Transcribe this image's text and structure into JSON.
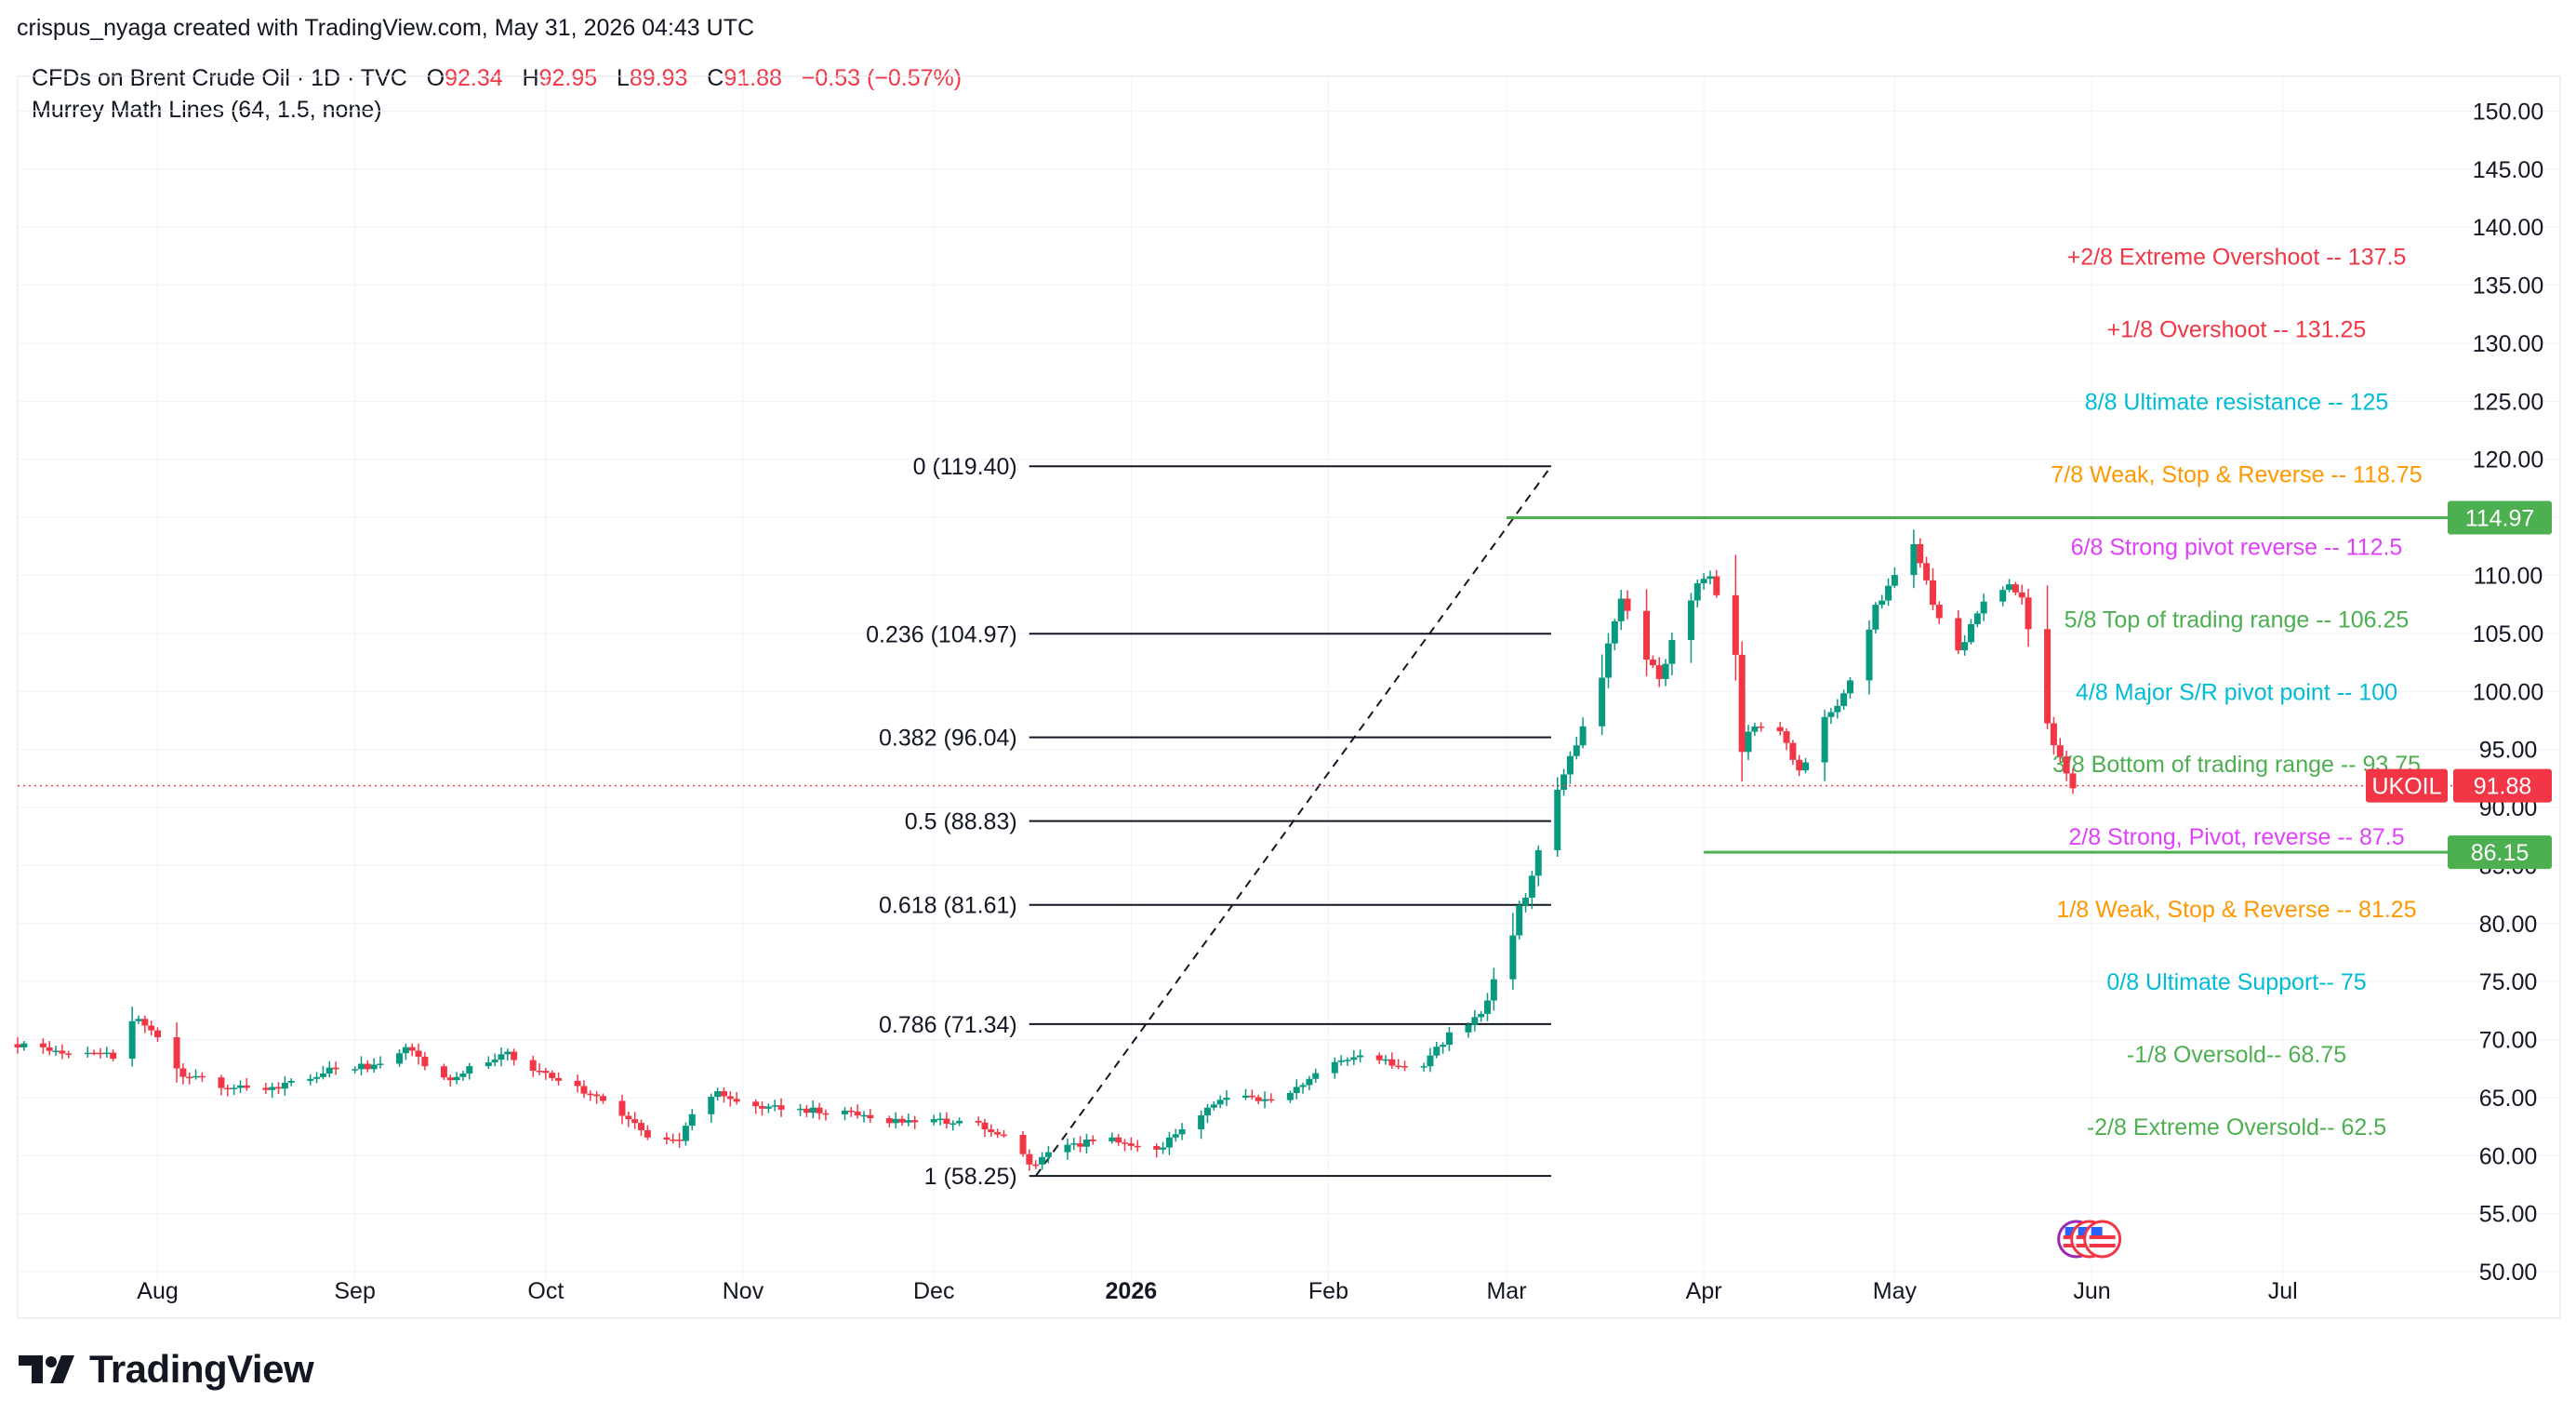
{
  "credit": "crispus_nyaga created with TradingView.com, May 31, 2026 04:43 UTC",
  "header": {
    "symbol": "CFDs on Brent Crude Oil · 1D · TVC",
    "o_label": "O",
    "o": "92.34",
    "h_label": "H",
    "h": "92.95",
    "l_label": "L",
    "l": "89.93",
    "c_label": "C",
    "c": "91.88",
    "change": "−0.53 (−0.57%)",
    "indicator": "Murrey Math Lines (64, 1.5, none)"
  },
  "logo": {
    "text": "TradingView",
    "icon": "tradingview-logo-icon"
  },
  "colors": {
    "up": "#089981",
    "down": "#f23645",
    "grid": "#f0f3fa",
    "fib": "#131722",
    "support": "#4caf50"
  },
  "chart_data": {
    "type": "candlestick",
    "symbol_label": "UKOIL",
    "last_price": 91.88,
    "last_price_label": "91.88",
    "x_range": [
      "2025-07-10",
      "2026-07-31"
    ],
    "ylim": [
      46,
      153
    ],
    "y_ticks": [
      "150.00",
      "145.00",
      "140.00",
      "135.00",
      "130.00",
      "125.00",
      "120.00",
      "115.00",
      "110.00",
      "105.00",
      "100.00",
      "95.00",
      "90.00",
      "85.00",
      "80.00",
      "75.00",
      "70.00",
      "65.00",
      "60.00",
      "55.00",
      "50.00"
    ],
    "x_ticks": [
      {
        "label": "Aug",
        "date": "2025-08-01"
      },
      {
        "label": "Sep",
        "date": "2025-09-01"
      },
      {
        "label": "Oct",
        "date": "2025-10-01"
      },
      {
        "label": "Nov",
        "date": "2025-11-01"
      },
      {
        "label": "Dec",
        "date": "2025-12-01"
      },
      {
        "label": "2026",
        "date": "2026-01-01",
        "bold": true
      },
      {
        "label": "Feb",
        "date": "2026-02-01"
      },
      {
        "label": "Mar",
        "date": "2026-03-01"
      },
      {
        "label": "Apr",
        "date": "2026-04-01"
      },
      {
        "label": "May",
        "date": "2026-05-01"
      },
      {
        "label": "Jun",
        "date": "2026-06-01"
      },
      {
        "label": "Jul",
        "date": "2026-07-01"
      }
    ],
    "path_start": "2025-07-10",
    "path_points": [
      [
        "2025-07-10",
        69.6
      ],
      [
        "2025-07-20",
        68.8
      ],
      [
        "2025-07-26",
        68.6
      ],
      [
        "2025-07-29",
        72.5
      ],
      [
        "2025-08-02",
        70.5
      ],
      [
        "2025-08-06",
        67.0
      ],
      [
        "2025-08-12",
        66.0
      ],
      [
        "2025-08-20",
        65.8
      ],
      [
        "2025-08-30",
        67.5
      ],
      [
        "2025-09-06",
        67.8
      ],
      [
        "2025-09-10",
        69.2
      ],
      [
        "2025-09-16",
        66.5
      ],
      [
        "2025-09-26",
        68.8
      ],
      [
        "2025-09-30",
        67.5
      ],
      [
        "2025-10-08",
        65.5
      ],
      [
        "2025-10-14",
        63.5
      ],
      [
        "2025-10-20",
        61.0
      ],
      [
        "2025-10-23",
        61.5
      ],
      [
        "2025-10-27",
        65.8
      ],
      [
        "2025-11-01",
        64.5
      ],
      [
        "2025-11-10",
        64.0
      ],
      [
        "2025-11-15",
        63.8
      ],
      [
        "2025-11-20",
        63.5
      ],
      [
        "2025-11-26",
        63.0
      ],
      [
        "2025-12-06",
        63.0
      ],
      [
        "2025-12-10",
        62.5
      ],
      [
        "2025-12-14",
        61.2
      ],
      [
        "2025-12-17",
        59.2
      ],
      [
        "2025-12-22",
        60.8
      ],
      [
        "2025-12-30",
        61.5
      ],
      [
        "2026-01-06",
        60.5
      ],
      [
        "2026-01-12",
        63.5
      ],
      [
        "2026-01-18",
        65.5
      ],
      [
        "2026-01-25",
        64.5
      ],
      [
        "2026-02-01",
        67.5
      ],
      [
        "2026-02-06",
        68.5
      ],
      [
        "2026-02-12",
        68.0
      ],
      [
        "2026-02-17",
        67.8
      ],
      [
        "2026-02-21",
        70.5
      ],
      [
        "2026-02-26",
        72.0
      ],
      [
        "2026-03-02",
        78.0
      ],
      [
        "2026-03-06",
        84.0
      ],
      [
        "2026-03-10",
        91.5
      ],
      [
        "2026-03-14",
        97.0
      ],
      [
        "2026-03-18",
        103.5
      ],
      [
        "2026-03-20",
        108.0
      ],
      [
        "2026-03-23",
        104.0
      ],
      [
        "2026-03-26",
        101.0
      ],
      [
        "2026-03-30",
        108.0
      ],
      [
        "2026-04-03",
        110.0
      ],
      [
        "2026-04-06",
        106.0
      ],
      [
        "2026-04-08",
        96.0
      ],
      [
        "2026-04-13",
        98.0
      ],
      [
        "2026-04-17",
        93.0
      ],
      [
        "2026-04-20",
        96.0
      ],
      [
        "2026-04-25",
        101.0
      ],
      [
        "2026-04-28",
        106.0
      ],
      [
        "2026-05-02",
        110.0
      ],
      [
        "2026-05-05",
        112.5
      ],
      [
        "2026-05-09",
        106.0
      ],
      [
        "2026-05-12",
        103.5
      ],
      [
        "2026-05-16",
        107.5
      ],
      [
        "2026-05-20",
        109.0
      ],
      [
        "2026-05-22",
        108.0
      ],
      [
        "2026-05-25",
        99.5
      ],
      [
        "2026-05-27",
        95.5
      ],
      [
        "2026-05-30",
        91.88
      ]
    ],
    "fib_start": {
      "date": "2025-12-17",
      "price": 58.25
    },
    "fib_end": {
      "date": "2026-03-08",
      "price": 119.4
    },
    "fib_levels": [
      {
        "label": "0 (119.40)",
        "price": 119.4
      },
      {
        "label": "0.236 (104.97)",
        "price": 104.97
      },
      {
        "label": "0.382 (96.04)",
        "price": 96.04
      },
      {
        "label": "0.5 (88.83)",
        "price": 88.83
      },
      {
        "label": "0.618 (81.61)",
        "price": 81.61
      },
      {
        "label": "0.786 (71.34)",
        "price": 71.34
      },
      {
        "label": "1 (58.25)",
        "price": 58.25
      }
    ],
    "horizontal_lines": [
      {
        "price": 114.97,
        "label": "114.97",
        "start": "2026-03-01"
      },
      {
        "price": 86.15,
        "label": "86.15",
        "start": "2026-04-01"
      }
    ],
    "murrey_lines": [
      {
        "label": "+2/8 Extreme Overshoot --  137.5",
        "price": 137.5,
        "color": "#f23645"
      },
      {
        "label": "+1/8 Overshoot --  131.25",
        "price": 131.25,
        "color": "#f23645"
      },
      {
        "label": "8/8 Ultimate resistance --  125",
        "price": 125,
        "color": "#00bcd4"
      },
      {
        "label": "7/8 Weak, Stop & Reverse --  118.75",
        "price": 118.75,
        "color": "#ff9800"
      },
      {
        "label": "6/8 Strong pivot reverse --  112.5",
        "price": 112.5,
        "color": "#e040fb"
      },
      {
        "label": "5/8 Top of trading range --  106.25",
        "price": 106.25,
        "color": "#4caf50"
      },
      {
        "label": "4/8 Major S/R pivot point --  100",
        "price": 100,
        "color": "#00bcd4"
      },
      {
        "label": "3/8 Bottom of trading range --  93.75",
        "price": 93.75,
        "color": "#4caf50"
      },
      {
        "label": "2/8 Strong, Pivot, reverse --  87.5",
        "price": 87.5,
        "color": "#e040fb"
      },
      {
        "label": "1/8 Weak, Stop & Reverse --  81.25",
        "price": 81.25,
        "color": "#ff9800"
      },
      {
        "label": "0/8 Ultimate Support--  75",
        "price": 75,
        "color": "#00bcd4"
      },
      {
        "label": "-1/8 Oversold--  68.75",
        "price": 68.75,
        "color": "#4caf50"
      },
      {
        "label": "-2/8 Extreme Oversold--  62.5",
        "price": 62.5,
        "color": "#4caf50"
      }
    ],
    "events_date": "2026-05-31"
  }
}
